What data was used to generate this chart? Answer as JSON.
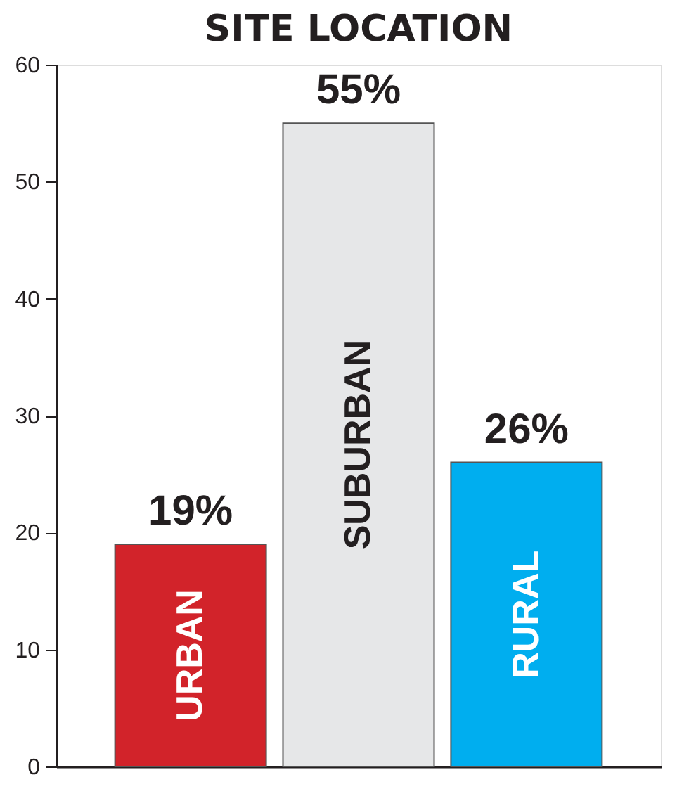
{
  "chart_data": {
    "type": "bar",
    "title": "SITE LOCATION",
    "categories": [
      "URBAN",
      "SUBURBAN",
      "RURAL"
    ],
    "values": [
      19,
      55,
      26
    ],
    "colors": [
      "#d2232a",
      "#e6e7e8",
      "#00aeef"
    ],
    "value_labels": [
      "19%",
      "55%",
      "26%"
    ],
    "ylim": [
      0,
      60
    ],
    "yticks": [
      0,
      10,
      20,
      30,
      40,
      50,
      60
    ],
    "grid": false,
    "legend": false,
    "tick_labels": "y"
  }
}
